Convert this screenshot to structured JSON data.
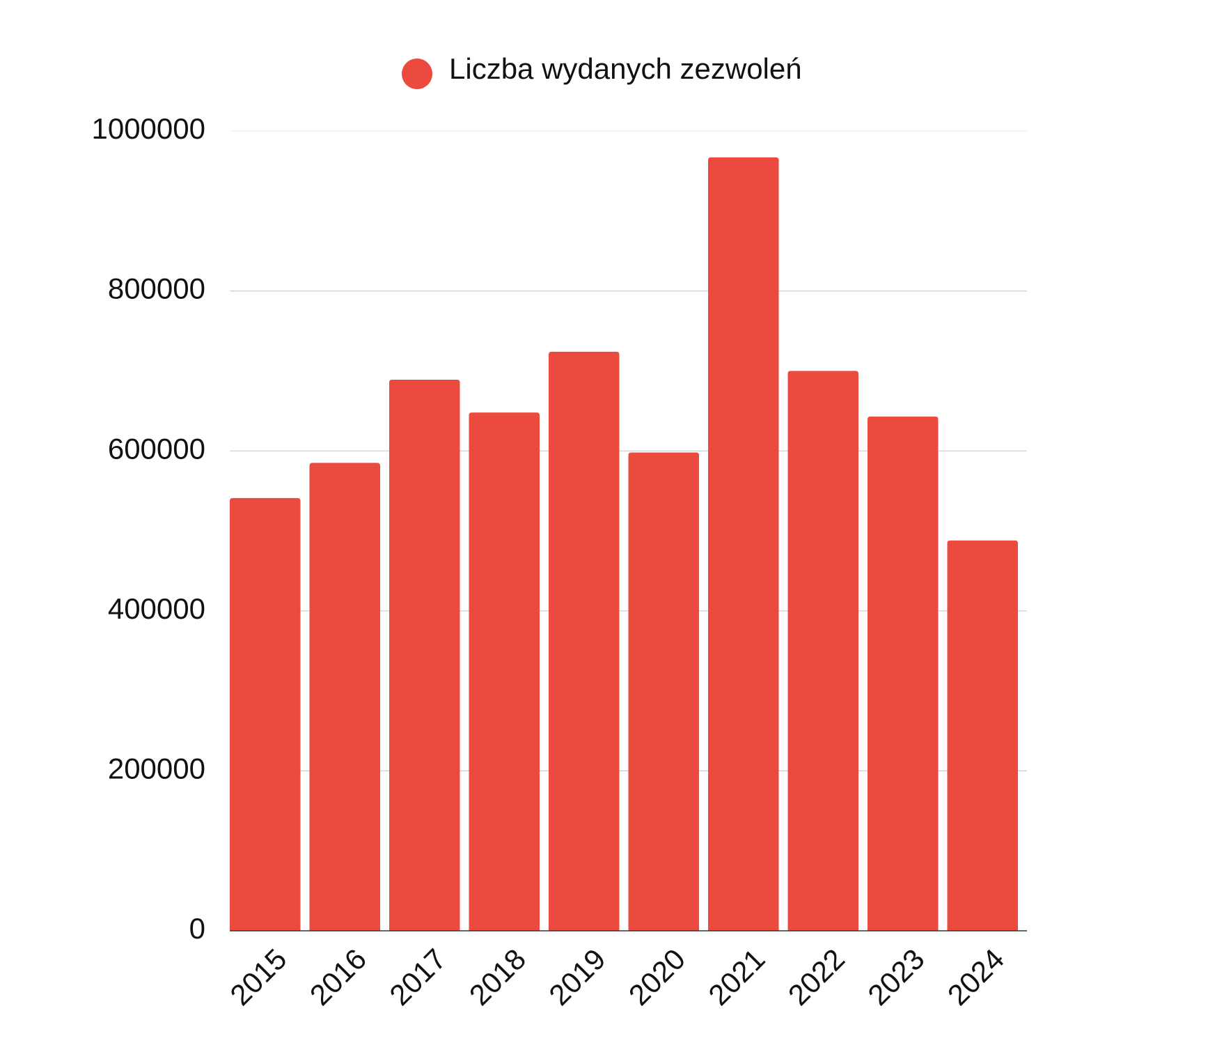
{
  "chart_data": {
    "type": "bar",
    "categories": [
      "2015",
      "2016",
      "2017",
      "2018",
      "2019",
      "2020",
      "2021",
      "2022",
      "2023",
      "2024"
    ],
    "series": [
      {
        "name": "Liczba wydanych zezwoleń",
        "values": [
          541000,
          585000,
          689000,
          648000,
          724000,
          598000,
          967000,
          700000,
          643000,
          488000
        ],
        "color": "#EB4A3F"
      }
    ],
    "yticks": [
      "0",
      "200000",
      "400000",
      "600000",
      "800000",
      "1000000"
    ],
    "ylim": [
      0,
      1000000
    ],
    "grid": true,
    "legend_position": "top-center",
    "x_tick_rotation": "-45deg",
    "colors": {
      "bar": "#EB4A3F",
      "grid": "#CCCCCC",
      "axis": "#333333",
      "text": "#111111"
    }
  }
}
